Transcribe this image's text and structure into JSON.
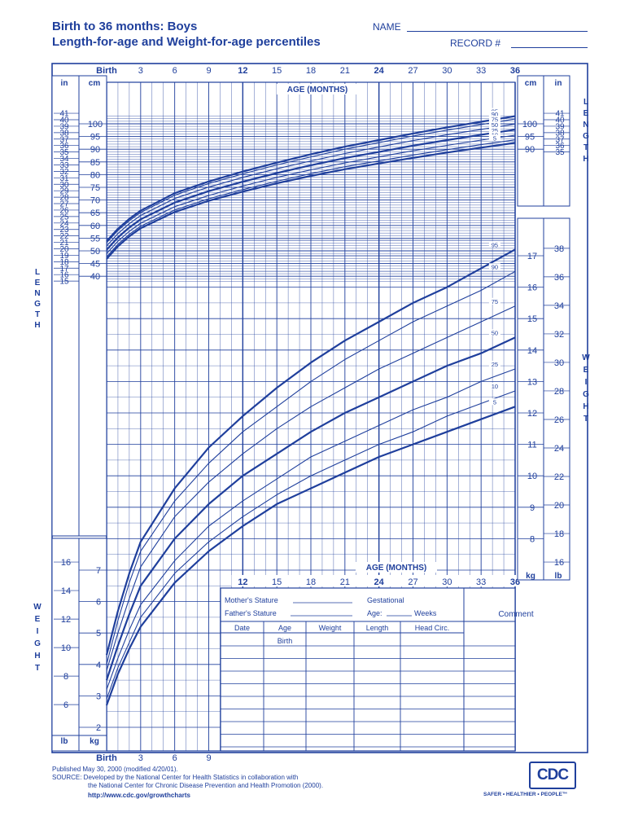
{
  "header": {
    "title_line1": "Birth to 36 months: Boys",
    "title_line2": "Length-for-age and Weight-for-age percentiles",
    "name_label": "NAME",
    "record_label": "RECORD #"
  },
  "chart_data": {
    "type": "line",
    "title": "Length-for-age and Weight-for-age percentiles",
    "xlabel": "AGE (MONTHS)",
    "top_age_ticks": [
      "Birth",
      "3",
      "6",
      "9",
      "12",
      "15",
      "18",
      "21",
      "24",
      "27",
      "30",
      "33",
      "36"
    ],
    "mid_age_ticks": [
      "12",
      "15",
      "18",
      "21",
      "24",
      "27",
      "30",
      "33",
      "36"
    ],
    "bottom_age_ticks": [
      "Birth",
      "3",
      "6",
      "9"
    ],
    "bold_age_ticks": [
      "12",
      "24",
      "36"
    ],
    "x": [
      0,
      1,
      2,
      3,
      6,
      9,
      12,
      15,
      18,
      21,
      24,
      27,
      30,
      33,
      36
    ],
    "length": {
      "ylabel": "LENGTH",
      "units": [
        "cm",
        "in"
      ],
      "cm_ticks": [
        40,
        45,
        50,
        55,
        60,
        65,
        70,
        75,
        80,
        85,
        90,
        95,
        100
      ],
      "in_ticks_left": [
        15,
        16,
        17,
        18,
        19,
        20,
        21,
        22,
        23,
        24,
        25,
        26,
        27,
        28,
        29,
        30,
        31,
        32,
        33,
        34,
        35,
        36,
        37,
        38,
        39,
        40,
        41
      ],
      "cm_ticks_right": [
        90,
        95,
        100
      ],
      "in_ticks_right": [
        35,
        36,
        37,
        38,
        39,
        40,
        41
      ],
      "series": [
        {
          "name": "95",
          "values": [
            53.8,
            58.7,
            62.6,
            65.8,
            72.7,
            77.3,
            81.2,
            84.7,
            88.0,
            91.0,
            93.6,
            96.2,
            98.6,
            100.8,
            103.0
          ]
        },
        {
          "name": "90",
          "values": [
            53.2,
            58.0,
            61.9,
            65.1,
            71.9,
            76.5,
            80.3,
            83.8,
            87.0,
            90.0,
            92.6,
            95.2,
            97.5,
            99.7,
            101.9
          ]
        },
        {
          "name": "75",
          "values": [
            51.9,
            56.8,
            60.7,
            63.9,
            70.6,
            75.1,
            78.9,
            82.3,
            85.4,
            88.3,
            90.9,
            93.4,
            95.7,
            97.8,
            99.9
          ]
        },
        {
          "name": "50",
          "values": [
            50.4,
            55.3,
            59.2,
            62.4,
            69.0,
            73.5,
            77.2,
            80.6,
            83.7,
            86.5,
            88.9,
            91.4,
            93.6,
            95.7,
            97.7
          ]
        },
        {
          "name": "25",
          "values": [
            48.9,
            53.8,
            57.7,
            60.9,
            67.4,
            71.8,
            75.5,
            78.9,
            81.9,
            84.6,
            87.0,
            89.4,
            91.5,
            93.6,
            95.5
          ]
        },
        {
          "name": "10",
          "values": [
            47.6,
            52.6,
            56.5,
            59.7,
            66.1,
            70.5,
            74.1,
            77.4,
            80.4,
            83.1,
            85.4,
            87.7,
            89.8,
            91.8,
            93.7
          ]
        },
        {
          "name": "5",
          "values": [
            46.8,
            51.8,
            55.7,
            58.9,
            65.3,
            69.7,
            73.3,
            76.6,
            79.5,
            82.1,
            84.4,
            86.6,
            88.7,
            90.6,
            92.5
          ]
        }
      ]
    },
    "weight": {
      "ylabel": "WEIGHT",
      "units": [
        "kg",
        "lb"
      ],
      "kg_ticks": [
        2,
        3,
        4,
        5,
        6,
        7,
        8,
        9,
        10,
        11,
        12,
        13,
        14,
        15,
        16,
        17
      ],
      "lb_ticks_left": [
        6,
        8,
        10,
        12,
        14,
        16
      ],
      "lb_ticks_right": [
        16,
        18,
        20,
        22,
        24,
        26,
        28,
        30,
        32,
        34,
        36,
        38
      ],
      "series": [
        {
          "name": "95",
          "values": [
            4.3,
            5.7,
            6.9,
            7.9,
            9.6,
            10.9,
            11.9,
            12.8,
            13.6,
            14.3,
            14.9,
            15.5,
            16.0,
            16.6,
            17.2
          ]
        },
        {
          "name": "90",
          "values": [
            4.0,
            5.4,
            6.6,
            7.6,
            9.2,
            10.4,
            11.4,
            12.2,
            13.0,
            13.7,
            14.3,
            14.9,
            15.4,
            15.9,
            16.5
          ]
        },
        {
          "name": "75",
          "values": [
            3.8,
            5.0,
            6.1,
            7.1,
            8.7,
            9.8,
            10.7,
            11.5,
            12.2,
            12.8,
            13.4,
            13.9,
            14.4,
            14.9,
            15.4
          ]
        },
        {
          "name": "50",
          "values": [
            3.5,
            4.6,
            5.6,
            6.5,
            8.0,
            9.1,
            10.0,
            10.7,
            11.4,
            12.0,
            12.5,
            13.0,
            13.5,
            13.9,
            14.4
          ]
        },
        {
          "name": "25",
          "values": [
            3.2,
            4.2,
            5.1,
            5.9,
            7.3,
            8.4,
            9.2,
            9.9,
            10.6,
            11.1,
            11.6,
            12.1,
            12.5,
            13.0,
            13.4
          ]
        },
        {
          "name": "10",
          "values": [
            2.9,
            3.9,
            4.7,
            5.5,
            6.9,
            7.9,
            8.7,
            9.4,
            10.0,
            10.5,
            11.0,
            11.4,
            11.9,
            12.3,
            12.7
          ]
        },
        {
          "name": "5",
          "values": [
            2.7,
            3.7,
            4.5,
            5.2,
            6.6,
            7.6,
            8.4,
            9.1,
            9.6,
            10.1,
            10.6,
            11.0,
            11.4,
            11.8,
            12.2
          ]
        }
      ]
    },
    "data_table": {
      "stature": [
        "Mother's Stature",
        "Father's Stature"
      ],
      "gestational": [
        "Gestational",
        "Age:",
        "Weeks"
      ],
      "comment": "Comment",
      "columns": [
        "Date",
        "Age",
        "Weight",
        "Length",
        "Head Circ."
      ],
      "first_age": "Birth"
    }
  },
  "footer": {
    "line1": "Published May 30, 2000 (modified 4/20/01).",
    "line2": "SOURCE: Developed by the National Center for Health Statistics in collaboration with",
    "line3": "the National Center for Chronic Disease Prevention and Health Promotion (2000).",
    "url": "http://www.cdc.gov/growthcharts",
    "logo": "CDC",
    "tagline": "SAFER • HEALTHIER • PEOPLE™"
  },
  "colors": {
    "ink": "#1f3f9c",
    "bg": "#ffffff"
  }
}
